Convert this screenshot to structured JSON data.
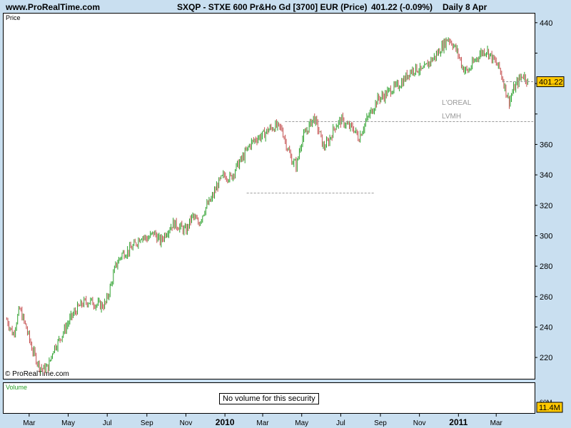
{
  "header": {
    "site": "www.ProRealTime.com",
    "instrument": "SXQP - STXE 600 Pr&Ho Gd [3700] EUR (Price)",
    "last_change": "401.22 (-0.09%)",
    "period": "Daily  8 Apr"
  },
  "price_panel": {
    "label": "Price",
    "copyright": "© ProRealTime.com"
  },
  "volume_panel": {
    "label": "Volume",
    "message": "No volume for this security",
    "axis_label": "60M",
    "tag": "11.4M"
  },
  "colors": {
    "up": "#2ca02c",
    "down": "#c44e4e",
    "tag_bg": "#ffc800",
    "background": "#c9dff0"
  },
  "chart_data": {
    "type": "candlestick",
    "y_ticks": [
      220,
      240,
      260,
      280,
      300,
      320,
      340,
      360,
      380,
      400,
      420,
      440
    ],
    "y_tick_labels": [
      "220",
      "240",
      "260",
      "280",
      "300",
      "320",
      "340",
      "360",
      "",
      "",
      "",
      "440"
    ],
    "ylim": [
      206,
      446
    ],
    "last_price": 401.22,
    "last_price_label": "401.22",
    "x_labels": [
      {
        "text": "Mar",
        "day": 0,
        "bold": false
      },
      {
        "text": "May",
        "day": 61,
        "bold": false
      },
      {
        "text": "Jul",
        "day": 122,
        "bold": false
      },
      {
        "text": "Sep",
        "day": 184,
        "bold": false
      },
      {
        "text": "Nov",
        "day": 245,
        "bold": false
      },
      {
        "text": "2010",
        "day": 306,
        "bold": true
      },
      {
        "text": "Mar",
        "day": 365,
        "bold": false
      },
      {
        "text": "May",
        "day": 426,
        "bold": false
      },
      {
        "text": "Jul",
        "day": 487,
        "bold": false
      },
      {
        "text": "Sep",
        "day": 549,
        "bold": false
      },
      {
        "text": "Nov",
        "day": 610,
        "bold": false
      },
      {
        "text": "2011",
        "day": 671,
        "bold": true
      },
      {
        "text": "Mar",
        "day": 730,
        "bold": false
      }
    ],
    "xlim": [
      -40,
      790
    ],
    "close_path": [
      [
        -35,
        245
      ],
      [
        -25,
        235
      ],
      [
        -15,
        252
      ],
      [
        -5,
        240
      ],
      [
        5,
        225
      ],
      [
        15,
        215
      ],
      [
        22,
        212
      ],
      [
        30,
        214
      ],
      [
        38,
        226
      ],
      [
        45,
        230
      ],
      [
        55,
        238
      ],
      [
        65,
        246
      ],
      [
        75,
        252
      ],
      [
        85,
        256
      ],
      [
        95,
        257
      ],
      [
        105,
        255
      ],
      [
        115,
        254
      ],
      [
        120,
        256
      ],
      [
        128,
        268
      ],
      [
        135,
        280
      ],
      [
        145,
        288
      ],
      [
        155,
        290
      ],
      [
        165,
        294
      ],
      [
        175,
        300
      ],
      [
        185,
        298
      ],
      [
        195,
        302
      ],
      [
        205,
        296
      ],
      [
        215,
        303
      ],
      [
        225,
        308
      ],
      [
        235,
        306
      ],
      [
        245,
        303
      ],
      [
        255,
        313
      ],
      [
        265,
        308
      ],
      [
        275,
        318
      ],
      [
        285,
        324
      ],
      [
        295,
        334
      ],
      [
        305,
        340
      ],
      [
        315,
        338
      ],
      [
        325,
        346
      ],
      [
        335,
        352
      ],
      [
        345,
        360
      ],
      [
        355,
        364
      ],
      [
        365,
        366
      ],
      [
        375,
        370
      ],
      [
        385,
        372
      ],
      [
        395,
        370
      ],
      [
        402,
        360
      ],
      [
        410,
        350
      ],
      [
        418,
        346
      ],
      [
        425,
        362
      ],
      [
        435,
        370
      ],
      [
        445,
        378
      ],
      [
        455,
        366
      ],
      [
        460,
        358
      ],
      [
        468,
        362
      ],
      [
        478,
        372
      ],
      [
        488,
        376
      ],
      [
        498,
        372
      ],
      [
        508,
        370
      ],
      [
        515,
        364
      ],
      [
        525,
        374
      ],
      [
        535,
        382
      ],
      [
        545,
        390
      ],
      [
        555,
        392
      ],
      [
        565,
        396
      ],
      [
        575,
        398
      ],
      [
        585,
        402
      ],
      [
        595,
        408
      ],
      [
        605,
        410
      ],
      [
        615,
        408
      ],
      [
        625,
        414
      ],
      [
        635,
        418
      ],
      [
        645,
        424
      ],
      [
        655,
        430
      ],
      [
        662,
        426
      ],
      [
        670,
        420
      ],
      [
        678,
        410
      ],
      [
        686,
        408
      ],
      [
        695,
        414
      ],
      [
        705,
        420
      ],
      [
        715,
        422
      ],
      [
        725,
        416
      ],
      [
        735,
        410
      ],
      [
        742,
        400
      ],
      [
        750,
        388
      ],
      [
        757,
        396
      ],
      [
        765,
        402
      ],
      [
        772,
        406
      ],
      [
        780,
        401.22
      ]
    ],
    "annotations": [
      {
        "type": "hline",
        "y": 328,
        "x_from": 340,
        "x_to": 540
      },
      {
        "type": "hline",
        "y": 375,
        "x_from": 400,
        "x_to": 790
      },
      {
        "type": "hline",
        "y": 401.22,
        "x_from": 740,
        "x_to": 790
      },
      {
        "type": "text",
        "text": "L'OREAL",
        "x": 645,
        "y": 386
      },
      {
        "type": "text",
        "text": "LVMH",
        "x": 645,
        "y": 377
      }
    ]
  }
}
